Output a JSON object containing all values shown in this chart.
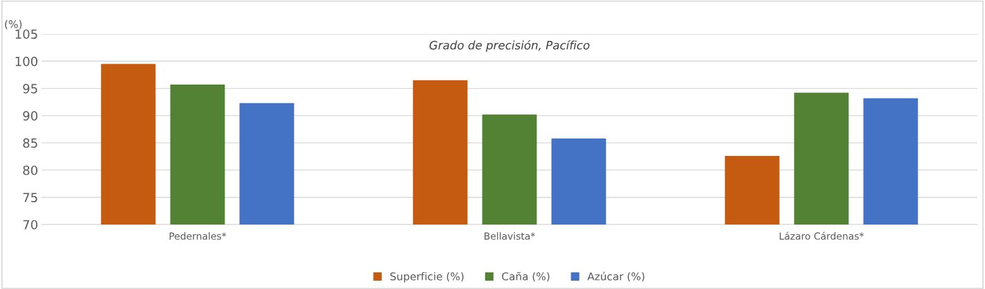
{
  "chart_data": {
    "type": "bar",
    "title": "Grado de precisión, Pacífico",
    "ylabel": "(%)",
    "categories": [
      "Pedernales*",
      "Bellavista*",
      "Lázaro Cárdenas*"
    ],
    "series": [
      {
        "name": "Superficie (%)",
        "color": "#c55a11",
        "values": [
          99.5,
          96.5,
          82.6
        ]
      },
      {
        "name": "Caña (%)",
        "color": "#548235",
        "values": [
          95.7,
          90.2,
          94.2
        ]
      },
      {
        "name": "Azúcar (%)",
        "color": "#4472c4",
        "values": [
          92.3,
          85.8,
          93.2
        ]
      }
    ],
    "ylim": [
      70,
      105
    ],
    "yticks": [
      70,
      75,
      80,
      85,
      90,
      95,
      100,
      105
    ],
    "grid": "y",
    "legend": "bottom"
  }
}
